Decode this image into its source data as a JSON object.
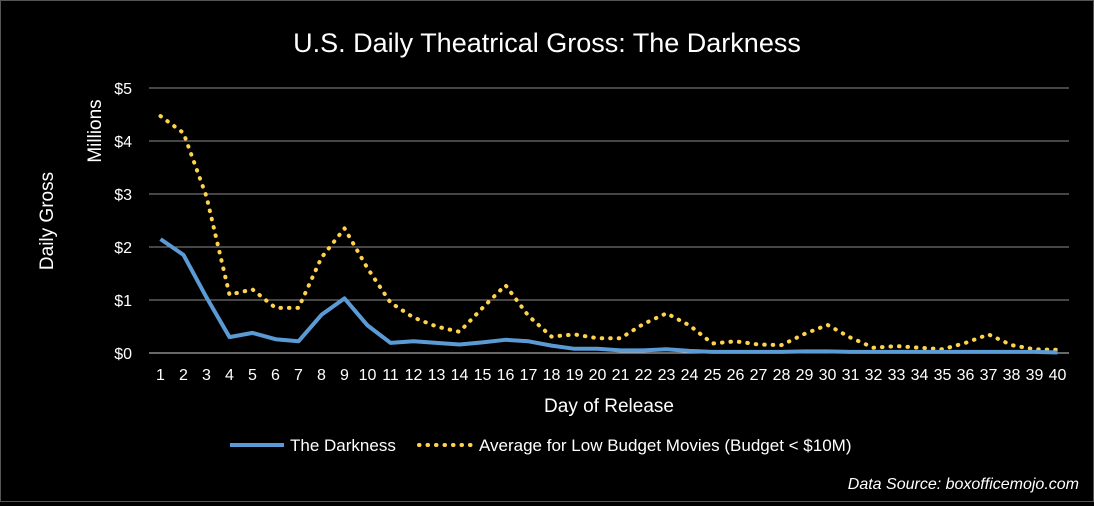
{
  "chart_data": {
    "type": "line",
    "title": "U.S. Daily Theatrical Gross: The Darkness",
    "xlabel": "Day of Release",
    "ylabel": "Daily Gross",
    "ylabel_units": "Millions",
    "ylim": [
      0,
      5
    ],
    "yticks": [
      0,
      1,
      2,
      3,
      4,
      5
    ],
    "ytick_labels": [
      "$0",
      "$1",
      "$2",
      "$3",
      "$4",
      "$5"
    ],
    "grid": true,
    "legend_position": "bottom",
    "source": "Data Source: boxofficemojo.com",
    "x": [
      1,
      2,
      3,
      4,
      5,
      6,
      7,
      8,
      9,
      10,
      11,
      12,
      13,
      14,
      15,
      16,
      17,
      18,
      19,
      20,
      21,
      22,
      23,
      24,
      25,
      26,
      27,
      28,
      29,
      30,
      31,
      32,
      33,
      34,
      35,
      36,
      37,
      38,
      39,
      40
    ],
    "series": [
      {
        "name": "The Darkness",
        "style": "solid",
        "color": "#5b9bd5",
        "values": [
          2.15,
          1.85,
          1.05,
          0.3,
          0.38,
          0.26,
          0.22,
          0.72,
          1.03,
          0.52,
          0.19,
          0.22,
          0.19,
          0.16,
          0.2,
          0.25,
          0.22,
          0.14,
          0.08,
          0.08,
          0.05,
          0.05,
          0.07,
          0.04,
          0.02,
          0.02,
          0.02,
          0.02,
          0.03,
          0.03,
          0.02,
          0.02,
          0.02,
          0.02,
          0.02,
          0.02,
          0.02,
          0.02,
          0.02,
          0.01
        ]
      },
      {
        "name": "Average for Low Budget Movies (Budget < $10M)",
        "style": "dotted",
        "color": "#ffd24d",
        "values": [
          4.47,
          4.15,
          2.95,
          1.1,
          1.2,
          0.85,
          0.85,
          1.8,
          2.35,
          1.6,
          0.95,
          0.67,
          0.5,
          0.4,
          0.85,
          1.28,
          0.7,
          0.31,
          0.35,
          0.28,
          0.28,
          0.55,
          0.75,
          0.52,
          0.18,
          0.22,
          0.16,
          0.15,
          0.36,
          0.53,
          0.29,
          0.1,
          0.13,
          0.1,
          0.07,
          0.19,
          0.35,
          0.15,
          0.07,
          0.06
        ]
      }
    ]
  }
}
